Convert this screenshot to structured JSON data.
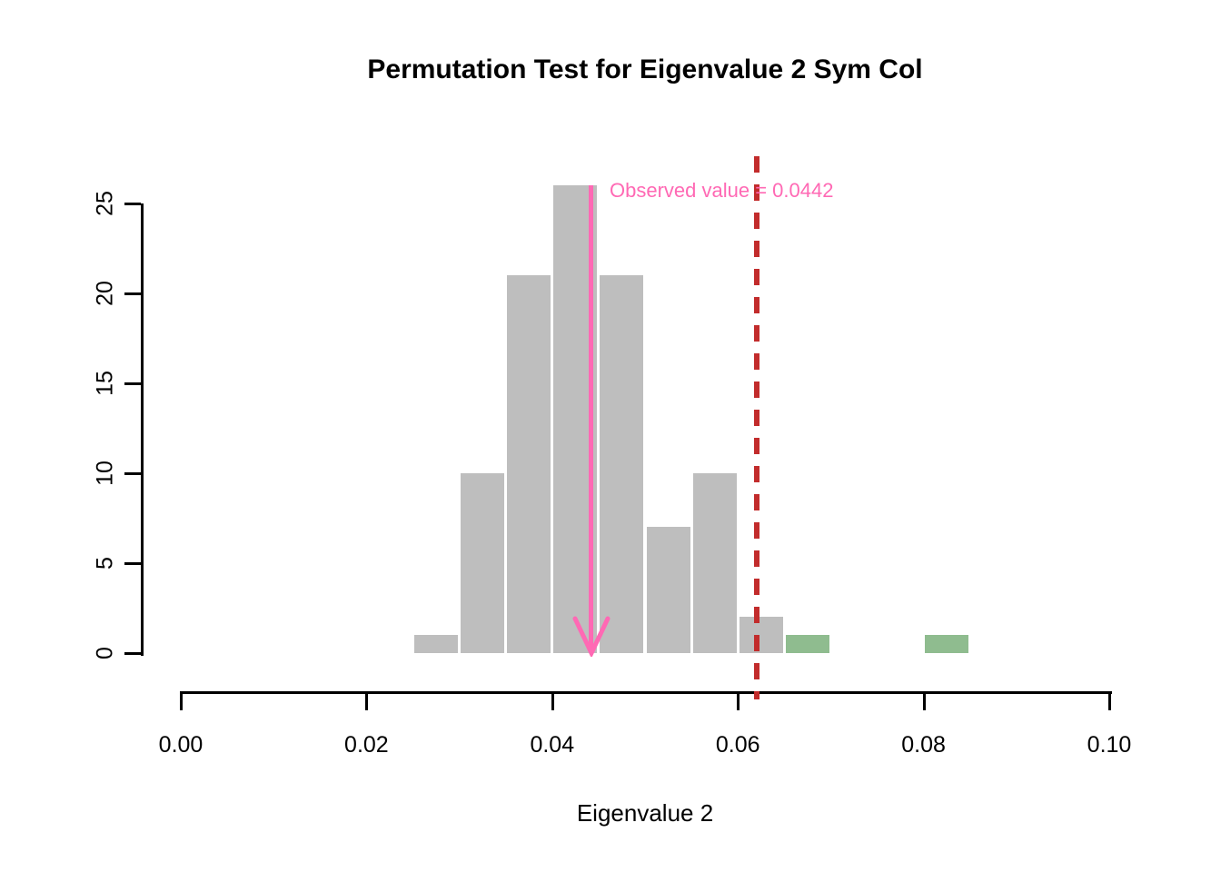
{
  "title": "Permutation Test for Eigenvalue 2 Sym Col",
  "chart_data": {
    "type": "bar",
    "subtype": "histogram",
    "title": "Permutation Test for Eigenvalue 2 Sym Col",
    "xlabel": "Eigenvalue 2",
    "ylabel": "",
    "xlim": [
      0.0,
      0.1
    ],
    "ylim": [
      0,
      26
    ],
    "grid": false,
    "legend": "none",
    "x_ticks": [
      0.0,
      0.02,
      0.04,
      0.06,
      0.08,
      0.1
    ],
    "x_tick_labels": [
      "0.00",
      "0.02",
      "0.04",
      "0.06",
      "0.08",
      "0.10"
    ],
    "y_ticks": [
      0,
      5,
      10,
      15,
      20,
      25
    ],
    "y_tick_labels": [
      "0",
      "5",
      "10",
      "15",
      "20",
      "25"
    ],
    "bin_width": 0.005,
    "bins": [
      {
        "start": 0.025,
        "end": 0.03,
        "count": 1,
        "color": "gray"
      },
      {
        "start": 0.03,
        "end": 0.035,
        "count": 10,
        "color": "gray"
      },
      {
        "start": 0.035,
        "end": 0.04,
        "count": 21,
        "color": "gray"
      },
      {
        "start": 0.04,
        "end": 0.045,
        "count": 26,
        "color": "gray"
      },
      {
        "start": 0.045,
        "end": 0.05,
        "count": 21,
        "color": "gray"
      },
      {
        "start": 0.05,
        "end": 0.055,
        "count": 7,
        "color": "gray"
      },
      {
        "start": 0.055,
        "end": 0.06,
        "count": 10,
        "color": "gray"
      },
      {
        "start": 0.06,
        "end": 0.065,
        "count": 2,
        "color": "gray"
      },
      {
        "start": 0.065,
        "end": 0.07,
        "count": 1,
        "color": "green"
      },
      {
        "start": 0.08,
        "end": 0.085,
        "count": 1,
        "color": "green"
      }
    ],
    "observed": {
      "value": 0.0442,
      "label": "Observed value = 0.0442"
    },
    "threshold": {
      "value": 0.062,
      "style": "dashed"
    },
    "colors": {
      "bar_gray": "#BEBEBE",
      "bar_green": "#8FBC8F",
      "observed_pink": "#FF69B4",
      "threshold_red": "#C22C2C",
      "axis_black": "#000000",
      "background": "#FFFFFF"
    }
  }
}
